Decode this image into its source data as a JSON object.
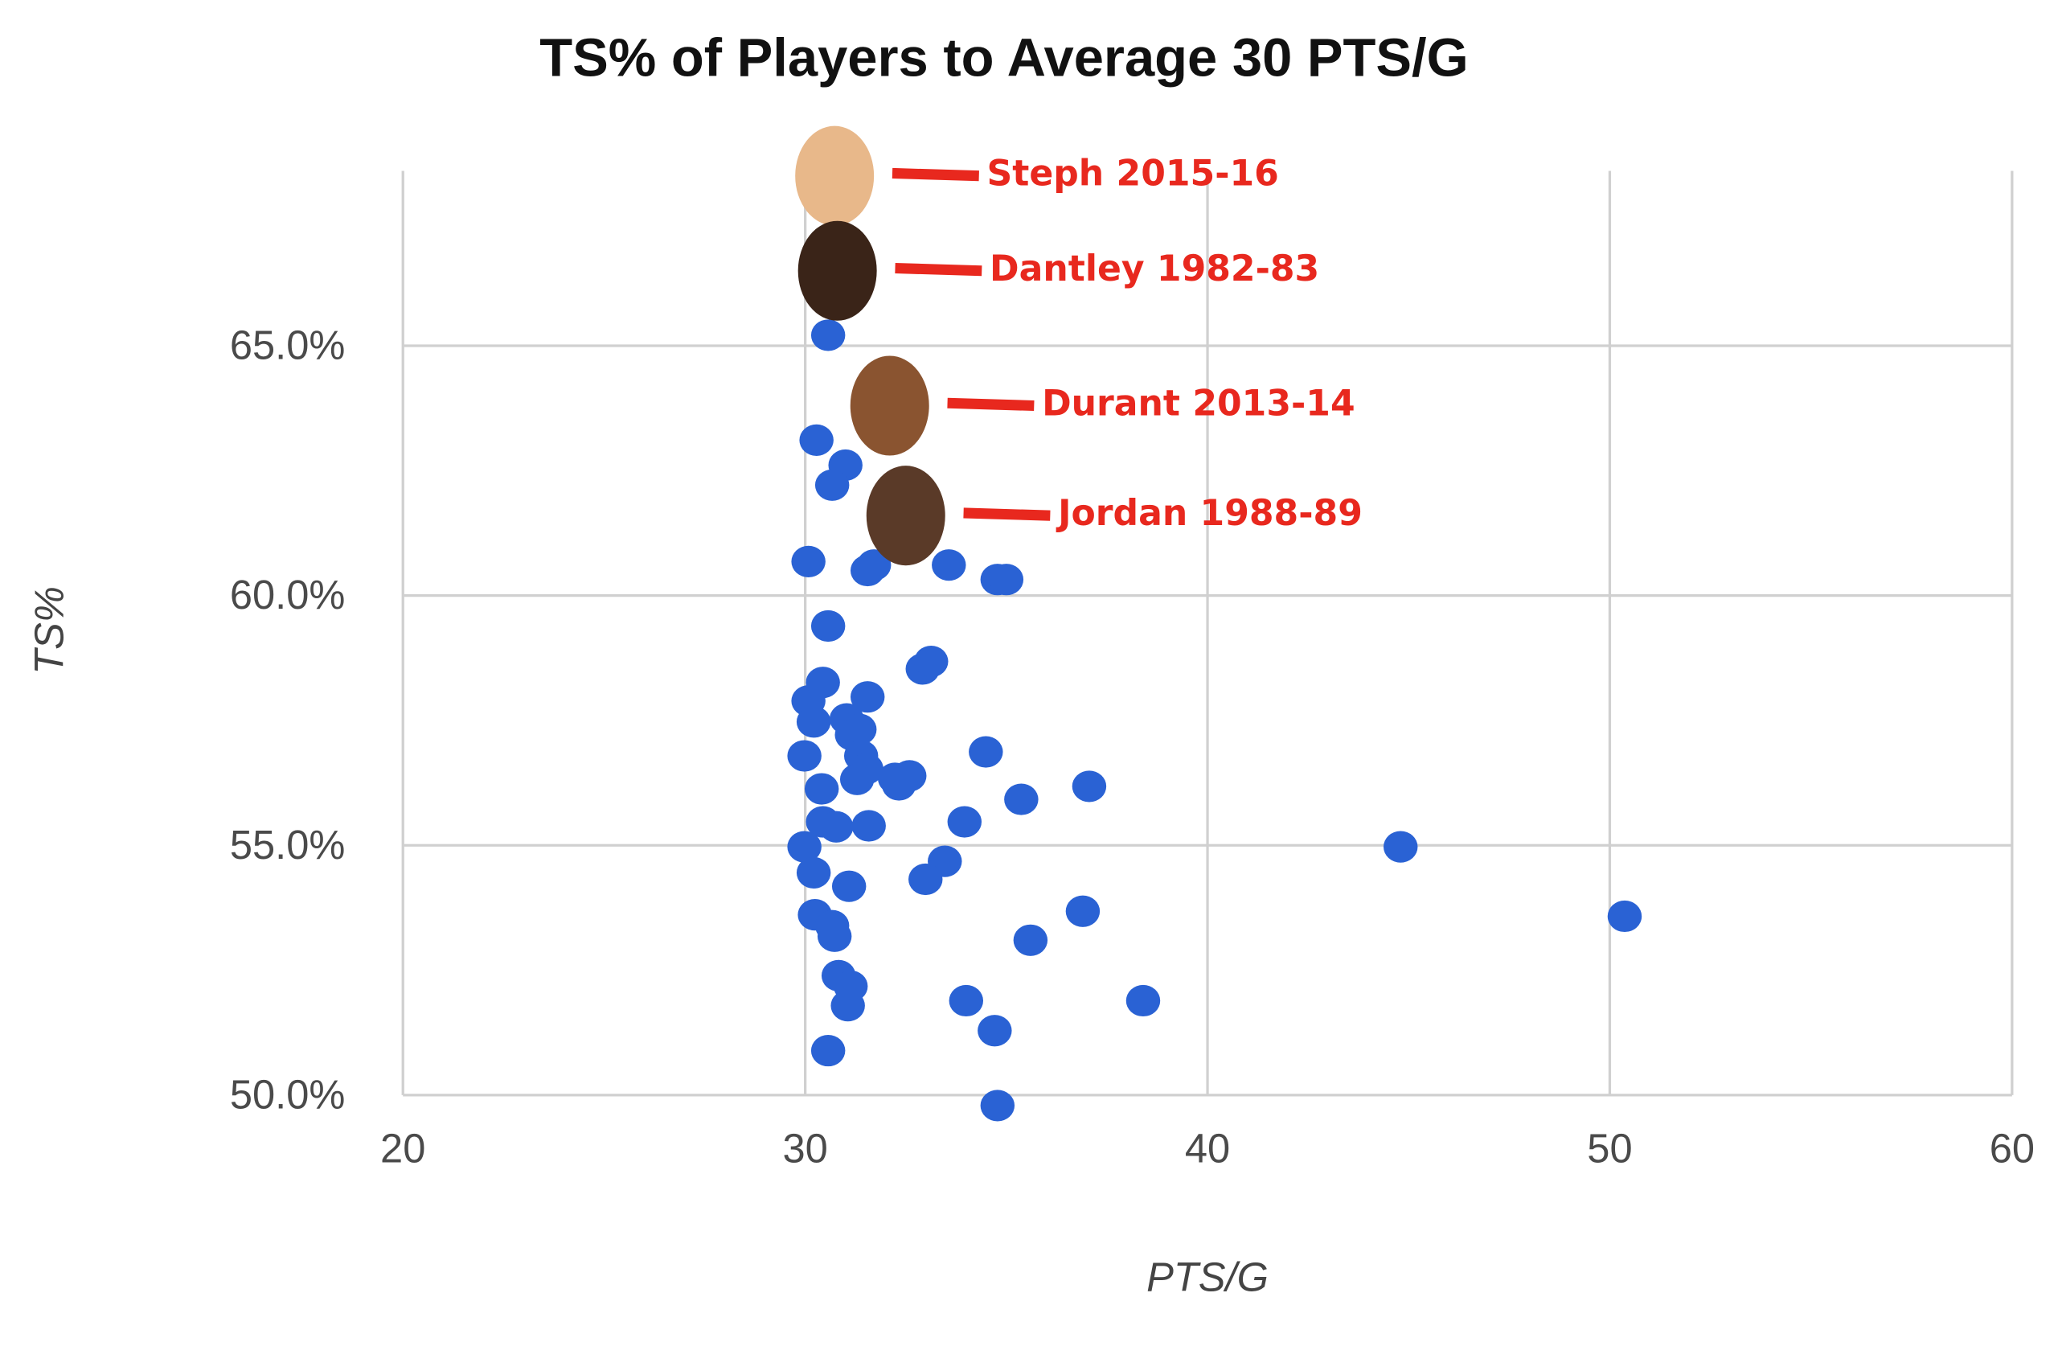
{
  "chart_data": {
    "type": "scatter",
    "title": "TS% of Players to Average 30 PTS/G",
    "x_label": "PTS/G",
    "y_label": "TS%",
    "xlim": [
      20,
      60
    ],
    "xticks": [
      20,
      30,
      40,
      50,
      60
    ],
    "ylim": [
      50,
      68.5
    ],
    "yticks": [
      {
        "value": 50,
        "label": "50.0%"
      },
      {
        "value": 55,
        "label": "55.0%"
      },
      {
        "value": 60,
        "label": "60.0%"
      },
      {
        "value": 65,
        "label": "65.0%"
      }
    ],
    "grid": true,
    "color": "#2a62d4",
    "x": [
      30.57,
      30.28,
      31.0,
      30.67,
      30.08,
      31.55,
      31.71,
      33.57,
      34.78,
      35.0,
      30.57,
      32.92,
      33.13,
      30.08,
      30.44,
      30.21,
      31.55,
      31.03,
      31.35,
      31.16,
      29.98,
      31.39,
      31.52,
      31.29,
      32.23,
      32.59,
      32.33,
      34.49,
      37.06,
      30.41,
      35.37,
      33.96,
      30.44,
      30.77,
      31.58,
      29.98,
      44.8,
      30.21,
      31.09,
      33.47,
      32.99,
      30.24,
      30.67,
      30.73,
      36.9,
      50.37,
      35.6,
      30.83,
      31.13,
      31.06,
      34.0,
      38.4,
      34.71,
      30.57,
      34.78
    ],
    "y": [
      65.21,
      63.11,
      62.61,
      62.21,
      60.68,
      60.5,
      60.61,
      60.61,
      60.32,
      60.32,
      59.39,
      58.53,
      58.68,
      57.89,
      58.26,
      57.47,
      57.97,
      57.53,
      57.32,
      57.21,
      56.79,
      56.79,
      56.53,
      56.32,
      56.34,
      56.39,
      56.21,
      56.87,
      56.18,
      56.13,
      55.92,
      55.47,
      55.47,
      55.37,
      55.39,
      54.97,
      54.97,
      54.45,
      54.18,
      54.68,
      54.32,
      53.61,
      53.39,
      53.18,
      53.68,
      53.58,
      53.1,
      52.39,
      52.18,
      51.79,
      51.89,
      51.89,
      51.29,
      50.89,
      49.79
    ],
    "annotations": [
      {
        "text": "Steph 2015-16",
        "x": 30.73,
        "y": 68.4,
        "color": "#e8b88a"
      },
      {
        "text": "Dantley 1982-83",
        "x": 30.8,
        "y": 66.5,
        "color": "#3a2418"
      },
      {
        "text": "Durant 2013-14",
        "x": 32.1,
        "y": 63.8,
        "color": "#8a5430"
      },
      {
        "text": "Jordan 1988-89",
        "x": 32.5,
        "y": 61.6,
        "color": "#5a3a28"
      }
    ]
  }
}
